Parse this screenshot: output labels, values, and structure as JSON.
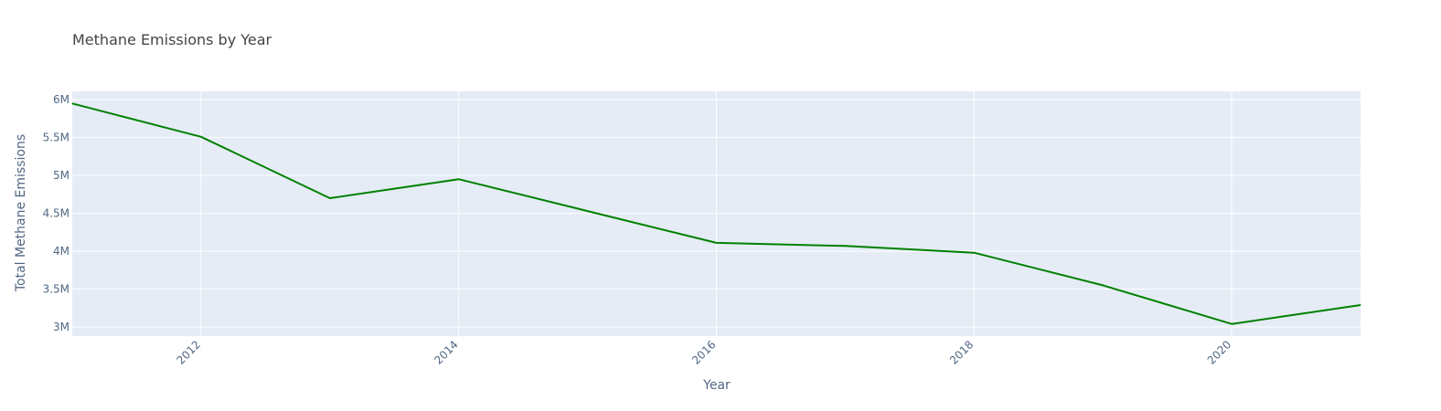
{
  "chart_data": {
    "type": "line",
    "title": "Methane Emissions by Year",
    "xlabel": "Year",
    "ylabel": "Total Methane Emissions",
    "x": [
      2011,
      2012,
      2013,
      2014,
      2015,
      2016,
      2017,
      2018,
      2019,
      2020,
      2021
    ],
    "series": [
      {
        "values": [
          5950000,
          5510000,
          4700000,
          4950000,
          4530000,
          4110000,
          4070000,
          3980000,
          3550000,
          3040000,
          3290000
        ]
      }
    ],
    "xlim": [
      2011,
      2021
    ],
    "ylim": [
      2880000,
      6110000
    ],
    "xticks": [
      2012,
      2014,
      2016,
      2018,
      2020
    ],
    "xtick_labels": [
      "2012",
      "2014",
      "2016",
      "2018",
      "2020"
    ],
    "yticks": [
      3000000,
      3500000,
      4000000,
      4500000,
      5000000,
      5500000,
      6000000
    ],
    "ytick_labels": [
      "3M",
      "3.5M",
      "4M",
      "4.5M",
      "5M",
      "5.5M",
      "6M"
    ],
    "grid": true,
    "line_color": "#008000",
    "plot_bg_color": "#E5ECF6",
    "grid_color": "#FFFFFF"
  }
}
